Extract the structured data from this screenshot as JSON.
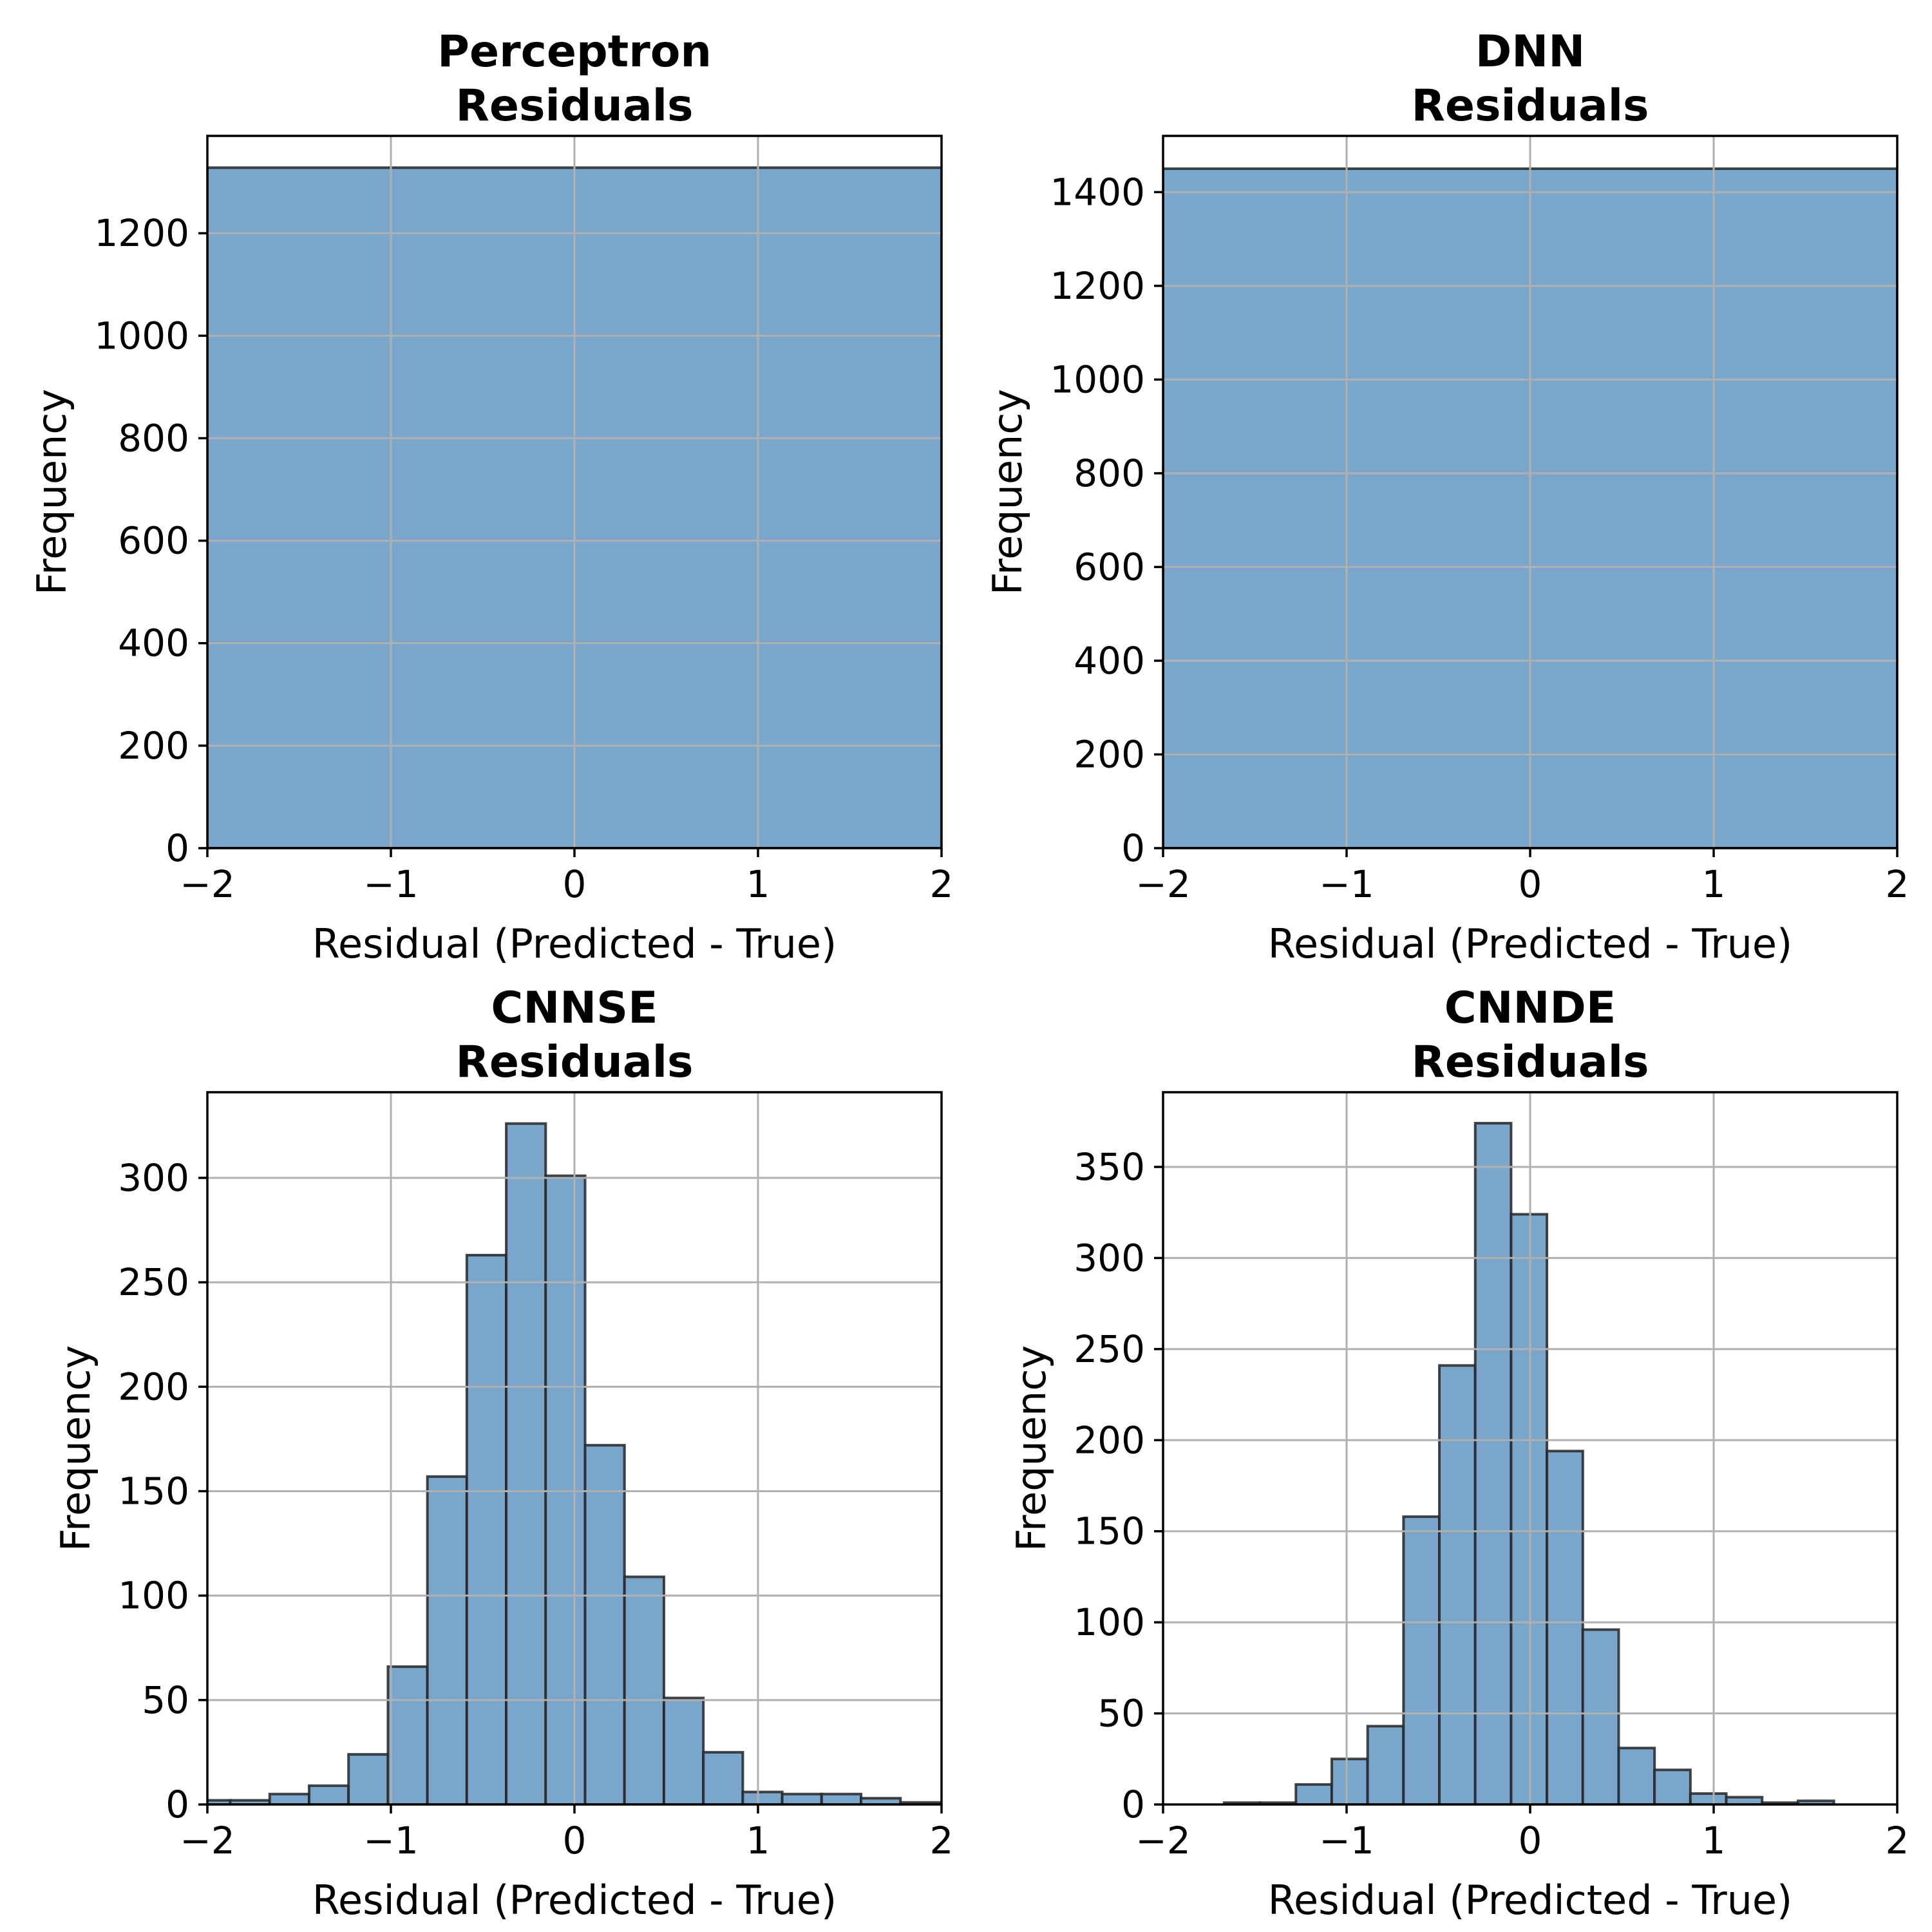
{
  "chart_data": [
    {
      "type": "bar",
      "title": "Perceptron\nResiduals",
      "xlabel": "Residual (Predicted - True)",
      "ylabel": "Frequency",
      "xlim": [
        -2,
        2
      ],
      "ylim": [
        0,
        1390
      ],
      "xticks": [
        "−2",
        "−1",
        "0",
        "1",
        "2"
      ],
      "xtick_values": [
        -2,
        -1,
        0,
        1,
        2
      ],
      "yticks": [
        "0",
        "200",
        "400",
        "600",
        "800",
        "1000",
        "1200"
      ],
      "ytick_values": [
        0,
        200,
        400,
        600,
        800,
        1000,
        1200
      ],
      "grid": true,
      "bins": [
        {
          "start": -2,
          "end": 2,
          "value": 1328
        }
      ]
    },
    {
      "type": "bar",
      "title": "DNN\nResiduals",
      "xlabel": "Residual (Predicted - True)",
      "ylabel": "Frequency",
      "xlim": [
        -2,
        2
      ],
      "ylim": [
        0,
        1520
      ],
      "xticks": [
        "−2",
        "−1",
        "0",
        "1",
        "2"
      ],
      "xtick_values": [
        -2,
        -1,
        0,
        1,
        2
      ],
      "yticks": [
        "0",
        "200",
        "400",
        "600",
        "800",
        "1000",
        "1200",
        "1400"
      ],
      "ytick_values": [
        0,
        200,
        400,
        600,
        800,
        1000,
        1200,
        1400
      ],
      "grid": true,
      "bins": [
        {
          "start": -2,
          "end": 2,
          "value": 1450
        }
      ]
    },
    {
      "type": "bar",
      "title": "CNNSE\nResiduals",
      "xlabel": "Residual (Predicted - True)",
      "ylabel": "Frequency",
      "xlim": [
        -2,
        2
      ],
      "ylim": [
        0,
        341
      ],
      "xticks": [
        "−2",
        "−1",
        "0",
        "1",
        "2"
      ],
      "xtick_values": [
        -2,
        -1,
        0,
        1,
        2
      ],
      "yticks": [
        "0",
        "50",
        "100",
        "150",
        "200",
        "250",
        "300"
      ],
      "ytick_values": [
        0,
        50,
        100,
        150,
        200,
        250,
        300
      ],
      "grid": true,
      "bin_start": -2.09,
      "bin_width": 0.2148,
      "values": [
        2,
        2,
        5,
        9,
        24,
        66,
        157,
        263,
        326,
        301,
        172,
        109,
        51,
        25,
        6,
        5,
        5,
        3,
        1
      ]
    },
    {
      "type": "bar",
      "title": "CNNDE\nResiduals",
      "xlabel": "Residual (Predicted - True)",
      "ylabel": "Frequency",
      "xlim": [
        -2,
        2
      ],
      "ylim": [
        0,
        391
      ],
      "xticks": [
        "−2",
        "−1",
        "0",
        "1",
        "2"
      ],
      "xtick_values": [
        -2,
        -1,
        0,
        1,
        2
      ],
      "yticks": [
        "0",
        "50",
        "100",
        "150",
        "200",
        "250",
        "300",
        "350"
      ],
      "ytick_values": [
        0,
        50,
        100,
        150,
        200,
        250,
        300,
        350
      ],
      "grid": true,
      "bin_start": -1.667,
      "bin_width": 0.1954,
      "values": [
        1,
        1,
        11,
        25,
        43,
        158,
        241,
        374,
        324,
        194,
        96,
        31,
        19,
        6,
        4,
        1,
        2
      ]
    }
  ],
  "colors": {
    "bar_fill": "#7ba6cb",
    "bar_edge": "#262626",
    "grid": "#b0b0b0",
    "axes": "#000000"
  }
}
